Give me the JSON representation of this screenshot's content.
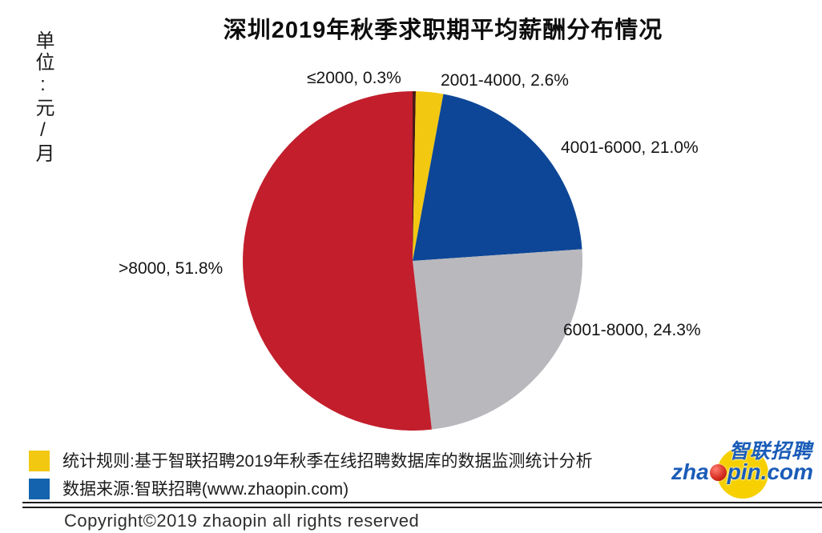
{
  "title": "深圳2019年秋季求职期平均薪酬分布情况",
  "unit_label": "单位:元/月",
  "chart_data": {
    "type": "pie",
    "title": "深圳2019年秋季求职期平均薪酬分布情况",
    "unit": "元/月",
    "categories": [
      "≤2000",
      "2001-4000",
      "4001-6000",
      "6001-8000",
      ">8000"
    ],
    "values": [
      0.3,
      2.6,
      21.0,
      24.3,
      51.8
    ],
    "colors": [
      "#4a1a14",
      "#f2c811",
      "#0d4697",
      "#b9b8bd",
      "#c21e2c"
    ],
    "start_angle_deg": 0,
    "direction": "clockwise",
    "legend_position": "none",
    "labels": [
      {
        "text": "≤2000,  0.3%"
      },
      {
        "text": "2001-4000,  2.6%"
      },
      {
        "text": "4001-6000,  21.0%"
      },
      {
        "text": "6001-8000,  24.3%"
      },
      {
        "text": ">8000,  51.8%"
      }
    ]
  },
  "legend": {
    "items": [
      {
        "color": "#f2c811",
        "text": "统计规则:基于智联招聘2019年秋季在线招聘数据库的数据监测统计分析"
      },
      {
        "color": "#1463ae",
        "text": "数据来源:智联招聘(www.zhaopin.com)"
      }
    ]
  },
  "footer": {
    "copyright": "Copyright©2019 zhaopin all rights reserved"
  },
  "logo": {
    "name_cn": "智联招聘",
    "domain_prefix": "zha",
    "domain_suffix": "pin.com",
    "colors": {
      "text_blue": "#1a5cb8",
      "circle_yellow": "#f6d000",
      "ball_red": "#d42b1e"
    }
  }
}
